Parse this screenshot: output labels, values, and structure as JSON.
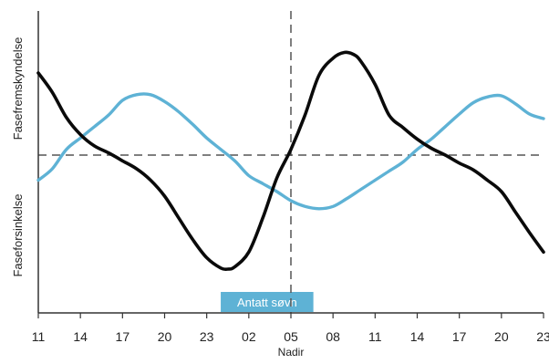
{
  "chart_data": {
    "type": "line",
    "title": "",
    "xlabel": "",
    "ylabel_top": "Fasefremskyndelse",
    "ylabel_bottom": "Faseforsinkelse",
    "x_tick_labels": [
      "11",
      "14",
      "17",
      "20",
      "23",
      "02",
      "05",
      "08",
      "11",
      "14",
      "17",
      "20",
      "23"
    ],
    "x_range_hours": [
      0,
      36
    ],
    "y_range": [
      -1.3,
      1.15
    ],
    "baseline": 0,
    "nadir": {
      "x": 18,
      "label": "Nadir"
    },
    "sleep_band": {
      "x_start": 13,
      "x_end": 19.6,
      "label": "Antatt søvn"
    },
    "grid": false,
    "series": [
      {
        "color": "#0a0a0a",
        "points": [
          [
            0,
            0.72
          ],
          [
            1,
            0.55
          ],
          [
            2,
            0.33
          ],
          [
            3,
            0.18
          ],
          [
            4,
            0.08
          ],
          [
            5,
            0.02
          ],
          [
            6,
            -0.05
          ],
          [
            7,
            -0.12
          ],
          [
            8,
            -0.22
          ],
          [
            9,
            -0.36
          ],
          [
            10,
            -0.55
          ],
          [
            11,
            -0.74
          ],
          [
            12,
            -0.9
          ],
          [
            13,
            -0.99
          ],
          [
            13.5,
            -1.0
          ],
          [
            14,
            -0.98
          ],
          [
            15,
            -0.85
          ],
          [
            16,
            -0.55
          ],
          [
            17,
            -0.2
          ],
          [
            18,
            0.05
          ],
          [
            19,
            0.35
          ],
          [
            20,
            0.7
          ],
          [
            21,
            0.85
          ],
          [
            21.8,
            0.9
          ],
          [
            22.5,
            0.88
          ],
          [
            23,
            0.82
          ],
          [
            24,
            0.62
          ],
          [
            25,
            0.35
          ],
          [
            26,
            0.24
          ],
          [
            27,
            0.14
          ],
          [
            28,
            0.06
          ],
          [
            29,
            0.0
          ],
          [
            30,
            -0.07
          ],
          [
            31,
            -0.13
          ],
          [
            32,
            -0.22
          ],
          [
            33,
            -0.32
          ],
          [
            34,
            -0.5
          ],
          [
            35,
            -0.68
          ],
          [
            36,
            -0.85
          ]
        ]
      },
      {
        "color": "#5eb2d5",
        "points": [
          [
            0,
            -0.22
          ],
          [
            1,
            -0.12
          ],
          [
            2,
            0.05
          ],
          [
            3,
            0.15
          ],
          [
            4,
            0.25
          ],
          [
            5,
            0.35
          ],
          [
            6,
            0.48
          ],
          [
            7,
            0.53
          ],
          [
            8,
            0.53
          ],
          [
            9,
            0.47
          ],
          [
            10,
            0.38
          ],
          [
            11,
            0.27
          ],
          [
            12,
            0.15
          ],
          [
            13,
            0.05
          ],
          [
            14,
            -0.05
          ],
          [
            15,
            -0.18
          ],
          [
            16,
            -0.25
          ],
          [
            17,
            -0.32
          ],
          [
            18,
            -0.4
          ],
          [
            19,
            -0.45
          ],
          [
            20,
            -0.47
          ],
          [
            21,
            -0.45
          ],
          [
            22,
            -0.38
          ],
          [
            23,
            -0.3
          ],
          [
            24,
            -0.22
          ],
          [
            25,
            -0.14
          ],
          [
            26,
            -0.06
          ],
          [
            27,
            0.05
          ],
          [
            28,
            0.14
          ],
          [
            29,
            0.25
          ],
          [
            30,
            0.36
          ],
          [
            31,
            0.46
          ],
          [
            32,
            0.51
          ],
          [
            33,
            0.52
          ],
          [
            34,
            0.45
          ],
          [
            35,
            0.36
          ],
          [
            36,
            0.32
          ]
        ]
      }
    ]
  },
  "colors": {
    "axis": "#333333",
    "dashed": "#555555",
    "sleep_band": "#5eb2d5",
    "sleep_text": "#ffffff",
    "label_text": "#222222"
  }
}
